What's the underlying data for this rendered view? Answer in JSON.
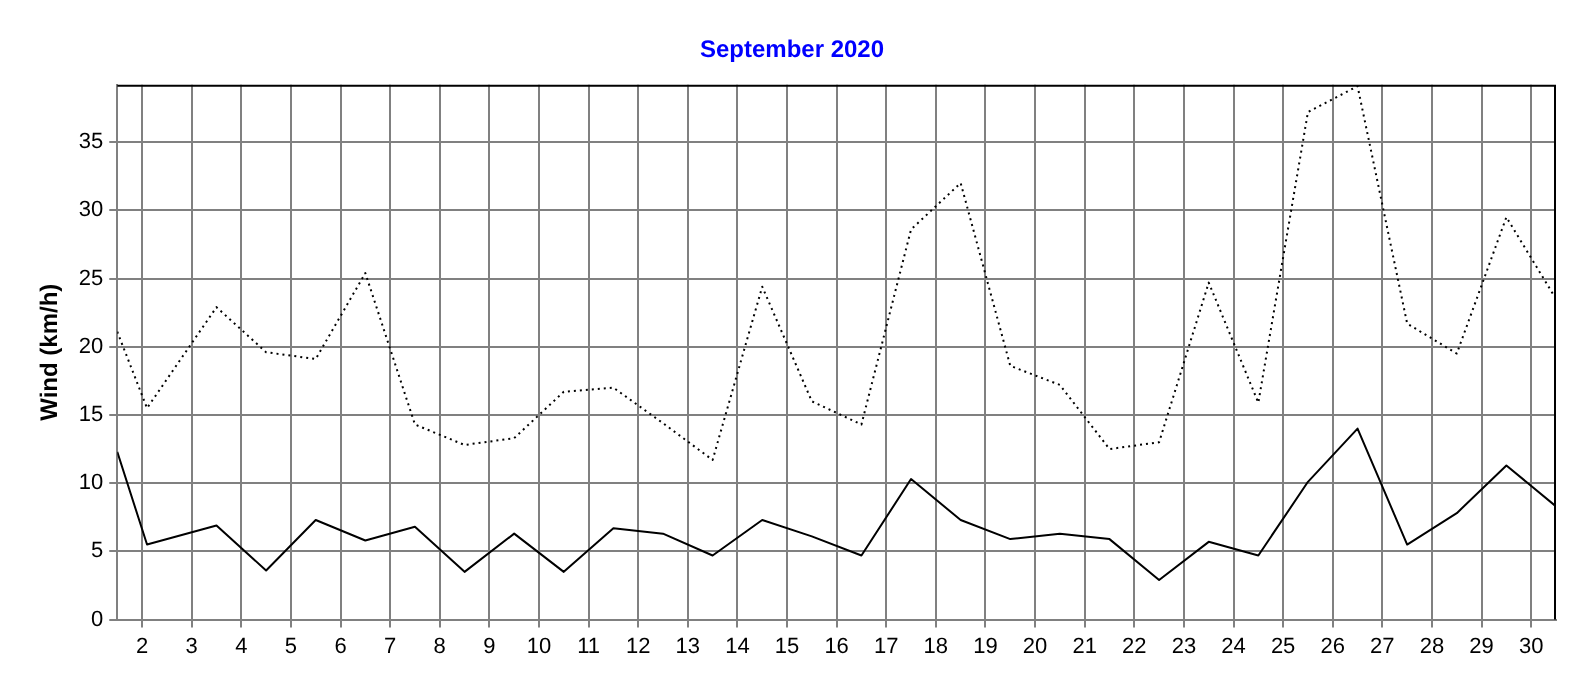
{
  "chart_data": {
    "type": "line",
    "title": "September 2020",
    "ylabel": "Wind (km/h)",
    "x": [
      1.5,
      2.1,
      3.5,
      4.5,
      5.5,
      6.5,
      7.5,
      8.5,
      9.5,
      10.5,
      11.5,
      12.5,
      13.5,
      14.5,
      15.5,
      16.5,
      17.5,
      18.5,
      19.5,
      20.5,
      21.5,
      22.5,
      23.5,
      24.5,
      25.5,
      26.5,
      27.5,
      28.5,
      29.5,
      30.5
    ],
    "series": [
      {
        "color": "#000000",
        "line_style": "solid",
        "values": [
          12.3,
          5.5,
          6.9,
          3.6,
          7.3,
          5.8,
          6.8,
          3.5,
          6.3,
          3.5,
          6.7,
          6.3,
          4.7,
          7.3,
          6.1,
          4.7,
          10.3,
          7.3,
          5.9,
          6.3,
          5.9,
          2.9,
          5.7,
          4.7,
          10.1,
          14.0,
          5.5,
          7.8,
          11.3,
          8.3
        ]
      },
      {
        "color": "#000000",
        "line_style": "dotted",
        "values": [
          21.1,
          15.5,
          22.9,
          19.6,
          19.1,
          25.4,
          14.3,
          12.8,
          13.3,
          16.7,
          17.0,
          14.4,
          11.7,
          24.4,
          16.0,
          14.3,
          28.6,
          32.0,
          18.6,
          17.2,
          12.5,
          13.0,
          24.7,
          15.9,
          37.2,
          39.1,
          21.7,
          19.5,
          29.5,
          23.5
        ]
      }
    ],
    "xlim": [
      1.5,
      30.5
    ],
    "xticks": [
      2,
      3,
      4,
      5,
      6,
      7,
      8,
      9,
      10,
      11,
      12,
      13,
      14,
      15,
      16,
      17,
      18,
      19,
      20,
      21,
      22,
      23,
      24,
      25,
      26,
      27,
      28,
      29,
      30
    ],
    "ylim": [
      0,
      39.2
    ],
    "yticks": [
      0,
      5,
      10,
      15,
      20,
      25,
      30,
      35
    ],
    "grid": true,
    "legend": false,
    "marker": "none"
  }
}
